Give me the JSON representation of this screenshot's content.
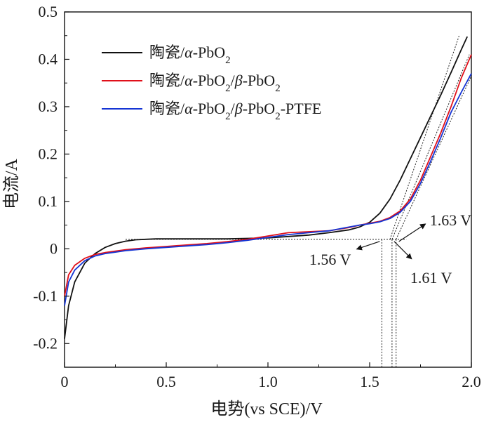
{
  "chart_data": {
    "type": "line",
    "xlabel": "电势(vs SCE)/V",
    "ylabel": "电流/A",
    "xlim": [
      0,
      2.0
    ],
    "ylim": [
      -0.25,
      0.5
    ],
    "x_ticks": [
      "0",
      "0.5",
      "1.0",
      "1.5",
      "2.0"
    ],
    "y_ticks": [
      "-0.2",
      "-0.1",
      "0",
      "0.1",
      "0.2",
      "0.3",
      "0.4",
      "0.5"
    ],
    "grid": false,
    "legend_position": "top-left",
    "series": [
      {
        "name_parts": [
          {
            "t": "陶瓷/"
          },
          {
            "t": "α",
            "i": true
          },
          {
            "t": "-PbO"
          },
          {
            "t": "2",
            "sub": true
          }
        ],
        "color": "#111111",
        "x": [
          0.0,
          0.02,
          0.05,
          0.1,
          0.15,
          0.2,
          0.25,
          0.3,
          0.35,
          0.4,
          0.45,
          0.5,
          0.6,
          0.7,
          0.8,
          0.9,
          1.0,
          1.1,
          1.2,
          1.3,
          1.4,
          1.45,
          1.5,
          1.55,
          1.6,
          1.65,
          1.7,
          1.75,
          1.8,
          1.85,
          1.9,
          1.95,
          1.98
        ],
        "y": [
          -0.19,
          -0.12,
          -0.07,
          -0.03,
          -0.01,
          0.003,
          0.011,
          0.016,
          0.019,
          0.02,
          0.021,
          0.021,
          0.021,
          0.021,
          0.021,
          0.022,
          0.023,
          0.026,
          0.029,
          0.034,
          0.04,
          0.046,
          0.056,
          0.075,
          0.105,
          0.145,
          0.19,
          0.235,
          0.28,
          0.325,
          0.372,
          0.42,
          0.448
        ]
      },
      {
        "name_parts": [
          {
            "t": "陶瓷/"
          },
          {
            "t": "α",
            "i": true
          },
          {
            "t": "-PbO"
          },
          {
            "t": "2",
            "sub": true
          },
          {
            "t": "/"
          },
          {
            "t": "β",
            "i": true
          },
          {
            "t": "-PbO"
          },
          {
            "t": "2",
            "sub": true
          }
        ],
        "color": "#e0101a",
        "x": [
          0.0,
          0.02,
          0.05,
          0.1,
          0.15,
          0.2,
          0.25,
          0.3,
          0.4,
          0.5,
          0.6,
          0.7,
          0.8,
          0.9,
          1.0,
          1.1,
          1.2,
          1.3,
          1.4,
          1.45,
          1.5,
          1.55,
          1.6,
          1.65,
          1.7,
          1.75,
          1.8,
          1.85,
          1.9,
          1.95,
          2.0
        ],
        "y": [
          -0.1,
          -0.055,
          -0.035,
          -0.02,
          -0.012,
          -0.008,
          -0.005,
          -0.002,
          0.002,
          0.005,
          0.008,
          0.011,
          0.015,
          0.02,
          0.027,
          0.034,
          0.036,
          0.038,
          0.045,
          0.05,
          0.054,
          0.058,
          0.066,
          0.08,
          0.105,
          0.145,
          0.195,
          0.245,
          0.3,
          0.36,
          0.41
        ]
      },
      {
        "name_parts": [
          {
            "t": "陶瓷/"
          },
          {
            "t": "α",
            "i": true
          },
          {
            "t": "-PbO"
          },
          {
            "t": "2",
            "sub": true
          },
          {
            "t": "/"
          },
          {
            "t": "β",
            "i": true
          },
          {
            "t": "-PbO"
          },
          {
            "t": "2",
            "sub": true
          },
          {
            "t": "-PTFE"
          }
        ],
        "color": "#1535d4",
        "x": [
          0.0,
          0.02,
          0.05,
          0.1,
          0.15,
          0.2,
          0.25,
          0.3,
          0.4,
          0.5,
          0.6,
          0.7,
          0.8,
          0.9,
          1.0,
          1.1,
          1.2,
          1.3,
          1.4,
          1.45,
          1.5,
          1.55,
          1.6,
          1.65,
          1.7,
          1.75,
          1.8,
          1.85,
          1.9,
          1.95,
          2.0
        ],
        "y": [
          -0.12,
          -0.07,
          -0.045,
          -0.025,
          -0.015,
          -0.01,
          -0.007,
          -0.004,
          0.0,
          0.003,
          0.006,
          0.009,
          0.013,
          0.018,
          0.024,
          0.03,
          0.034,
          0.038,
          0.046,
          0.05,
          0.053,
          0.057,
          0.064,
          0.077,
          0.1,
          0.138,
          0.185,
          0.235,
          0.288,
          0.33,
          0.37
        ]
      }
    ],
    "tangents": [
      {
        "x1": 1.6,
        "y1": 0.02,
        "x2": 1.94,
        "y2": 0.45
      },
      {
        "x1": 1.61,
        "y1": 0.02,
        "x2": 1.99,
        "y2": 0.41
      },
      {
        "x1": 1.63,
        "y1": 0.02,
        "x2": 2.0,
        "y2": 0.365
      },
      {
        "x1": 0.3,
        "y1": 0.02,
        "x2": 1.68,
        "y2": 0.02
      }
    ],
    "drop_lines": [
      1.56,
      1.61,
      1.63
    ],
    "annotations": [
      {
        "text": "1.63 V",
        "x": 1.63,
        "y": 0.02,
        "side": "upper-right"
      },
      {
        "text": "1.56 V",
        "x": 1.56,
        "y": 0.02,
        "side": "lower-left"
      },
      {
        "text": "1.61 V",
        "x": 1.61,
        "y": 0.02,
        "side": "lower-right"
      }
    ]
  }
}
